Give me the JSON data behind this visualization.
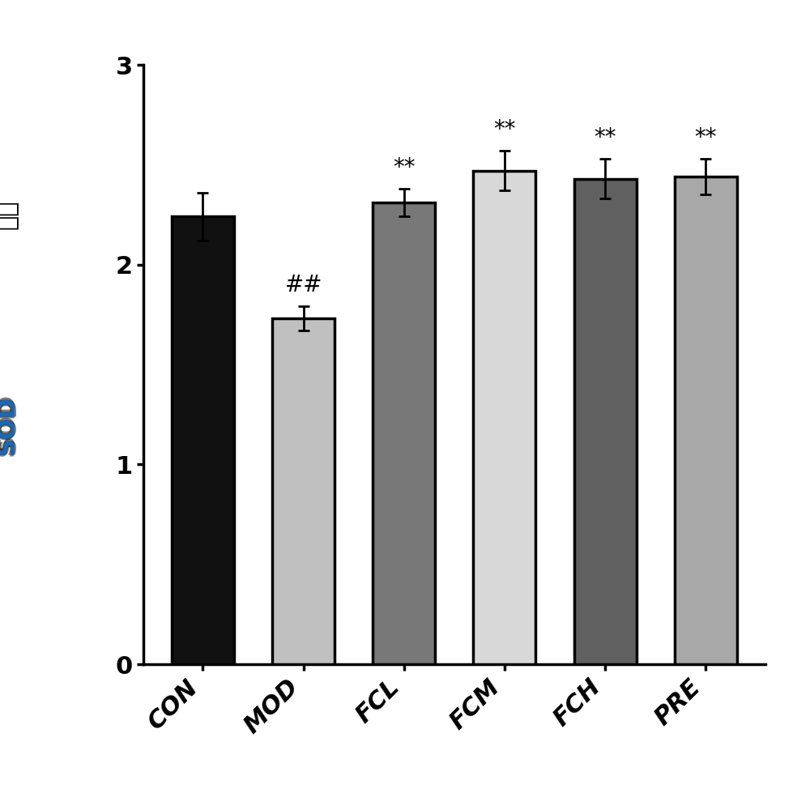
{
  "categories": [
    "CON",
    "MOD",
    "FCL",
    "FCM",
    "FCH",
    "PRE"
  ],
  "values": [
    2.24,
    1.73,
    2.31,
    2.47,
    2.43,
    2.44
  ],
  "errors": [
    0.12,
    0.06,
    0.07,
    0.1,
    0.1,
    0.09
  ],
  "bar_colors": [
    "#111111",
    "#c0c0c0",
    "#787878",
    "#d8d8d8",
    "#606060",
    "#a8a8a8"
  ],
  "bar_edgecolors": [
    "#000000",
    "#000000",
    "#000000",
    "#000000",
    "#000000",
    "#000000"
  ],
  "annotations": [
    "",
    "##",
    "**",
    "**",
    "**",
    "**"
  ],
  "ylim": [
    0,
    3
  ],
  "yticks": [
    0,
    1,
    2,
    3
  ],
  "bar_width": 0.62,
  "edgewidth": 2.5,
  "capsize": 5,
  "errorbar_linewidth": 2.0,
  "annotation_fontsize": 20,
  "xlabel_fontsize": 22,
  "ylabel_fontsize": 22,
  "tick_fontsize": 22,
  "background_color": "#ffffff"
}
